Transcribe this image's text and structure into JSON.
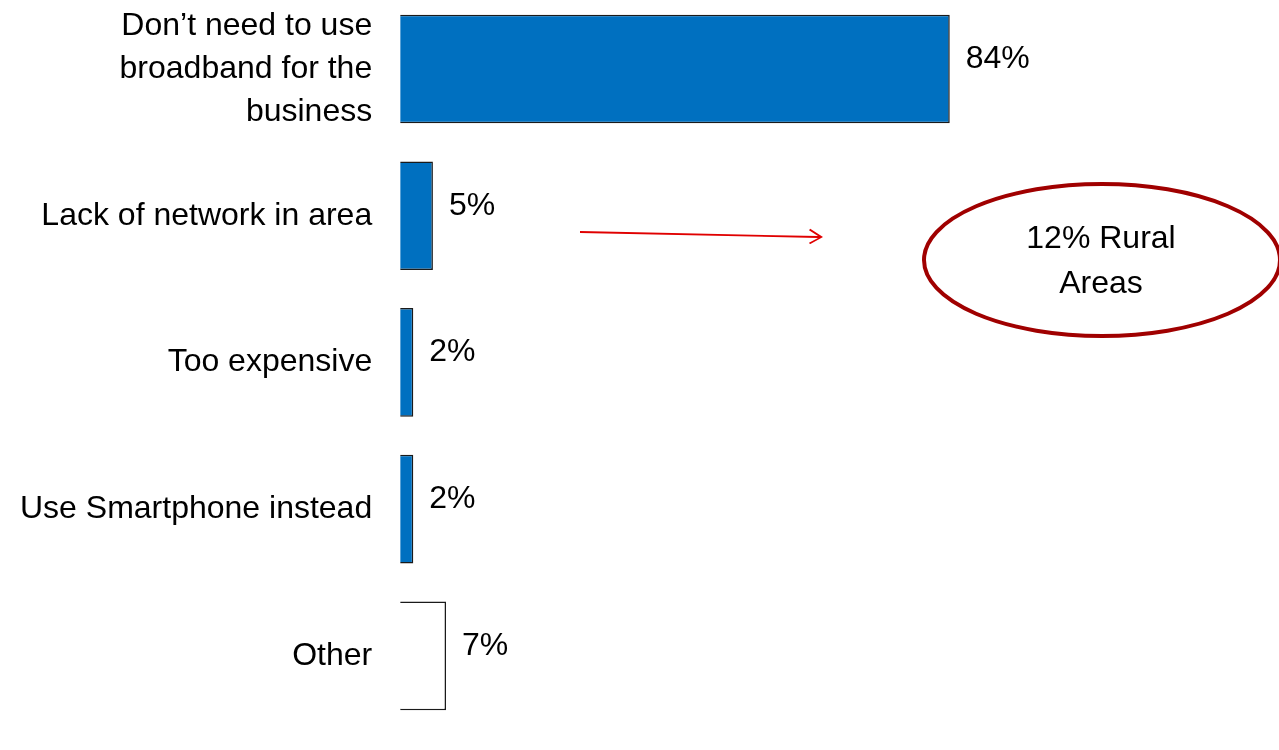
{
  "chart_data": {
    "type": "bar",
    "orientation": "horizontal",
    "categories": [
      "Don’t need to use broadband for the business",
      "Lack of network in area",
      "Too expensive",
      "Use Smartphone instead",
      "Other"
    ],
    "values": [
      84,
      5,
      2,
      2,
      7
    ],
    "colors": [
      "#0070c0",
      "#0070c0",
      "#0070c0",
      "#0070c0",
      "#ffffff"
    ],
    "value_labels": [
      "84%",
      "5%",
      "2%",
      "2%",
      "7%"
    ],
    "tick_labels": "y",
    "annotations": [
      "12% Rural Areas"
    ]
  }
}
